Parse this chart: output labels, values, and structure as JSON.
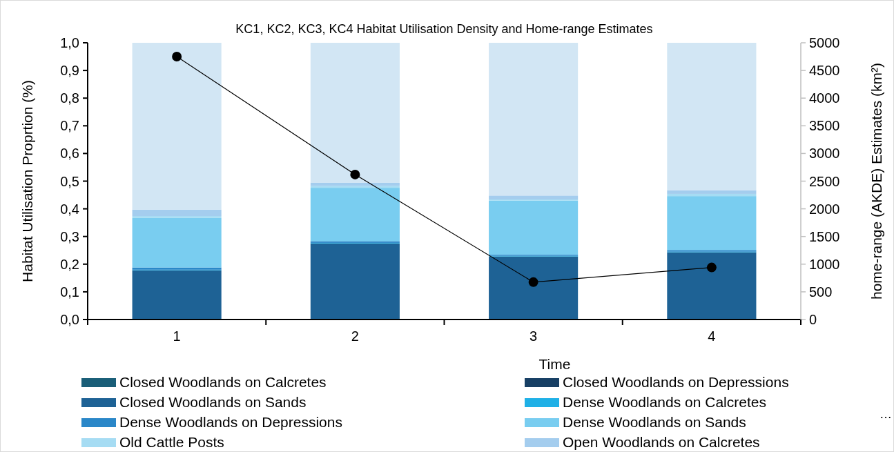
{
  "chart_data": {
    "type": "bar",
    "stacked": true,
    "title": "KC1, KC2, KC3, KC4 Habitat Utilisation Density and Home-range Estimates",
    "xlabel": "Time",
    "ylabel": "Habitat Utilisation Proprtion (%)",
    "y2label": "home-range (AKDE) Estimates (km²)",
    "categories": [
      "1",
      "2",
      "3",
      "4"
    ],
    "series": [
      {
        "name": "Closed Woodlands on Calcretes",
        "color": "#1a5e78",
        "values": [
          0,
          0,
          0,
          0
        ]
      },
      {
        "name": "Closed Woodlands on Depressions",
        "color": "#173f64",
        "values": [
          0,
          0,
          0,
          0
        ]
      },
      {
        "name": "Closed Woodlands on Sands",
        "color": "#1e6295",
        "values": [
          0.178,
          0.275,
          0.228,
          0.243
        ]
      },
      {
        "name": "Dense Woodlands on Calcretes",
        "color": "#1fb0e6",
        "values": [
          0.002,
          0.002,
          0.002,
          0.002
        ]
      },
      {
        "name": "Dense Woodlands on Depressions",
        "color": "#2a87c8",
        "values": [
          0.008,
          0.006,
          0.004,
          0.006
        ]
      },
      {
        "name": "Dense Woodlands on Sands",
        "color": "#79cdf0",
        "values": [
          0.179,
          0.193,
          0.196,
          0.195
        ]
      },
      {
        "name": "Old Cattle Posts",
        "color": "#a6dcf3",
        "values": [
          0.007,
          0.007,
          0.004,
          0.008
        ]
      },
      {
        "name": "Open Woodlands on Calcretes",
        "color": "#a4cdee",
        "values": [
          0.023,
          0.012,
          0.014,
          0.013
        ]
      },
      {
        "color": "#d2e6f4",
        "values": [
          0.603,
          0.505,
          0.552,
          0.533
        ]
      },
      {
        "type": "line",
        "axis": "y2",
        "color": "#000000",
        "marker": "circle",
        "values": [
          4750,
          2620,
          675,
          940
        ]
      }
    ],
    "ylim": [
      0,
      1
    ],
    "yticks": [
      {
        "value": 0,
        "label": "0,0"
      },
      {
        "value": 0.1,
        "label": "0,1"
      },
      {
        "value": 0.2,
        "label": "0,2"
      },
      {
        "value": 0.3,
        "label": "0,3"
      },
      {
        "value": 0.4,
        "label": "0,4"
      },
      {
        "value": 0.5,
        "label": "0,5"
      },
      {
        "value": 0.6,
        "label": "0,6"
      },
      {
        "value": 0.7,
        "label": "0,7"
      },
      {
        "value": 0.8,
        "label": "0,8"
      },
      {
        "value": 0.9,
        "label": "0,9"
      },
      {
        "value": 1,
        "label": "1,0"
      }
    ],
    "y2lim": [
      0,
      5000
    ],
    "y2ticks": [
      0,
      500,
      1000,
      1500,
      2000,
      2500,
      3000,
      3500,
      4000,
      4500,
      5000
    ],
    "legend": "bottom",
    "grid": false,
    "annotations": [
      "…"
    ]
  }
}
